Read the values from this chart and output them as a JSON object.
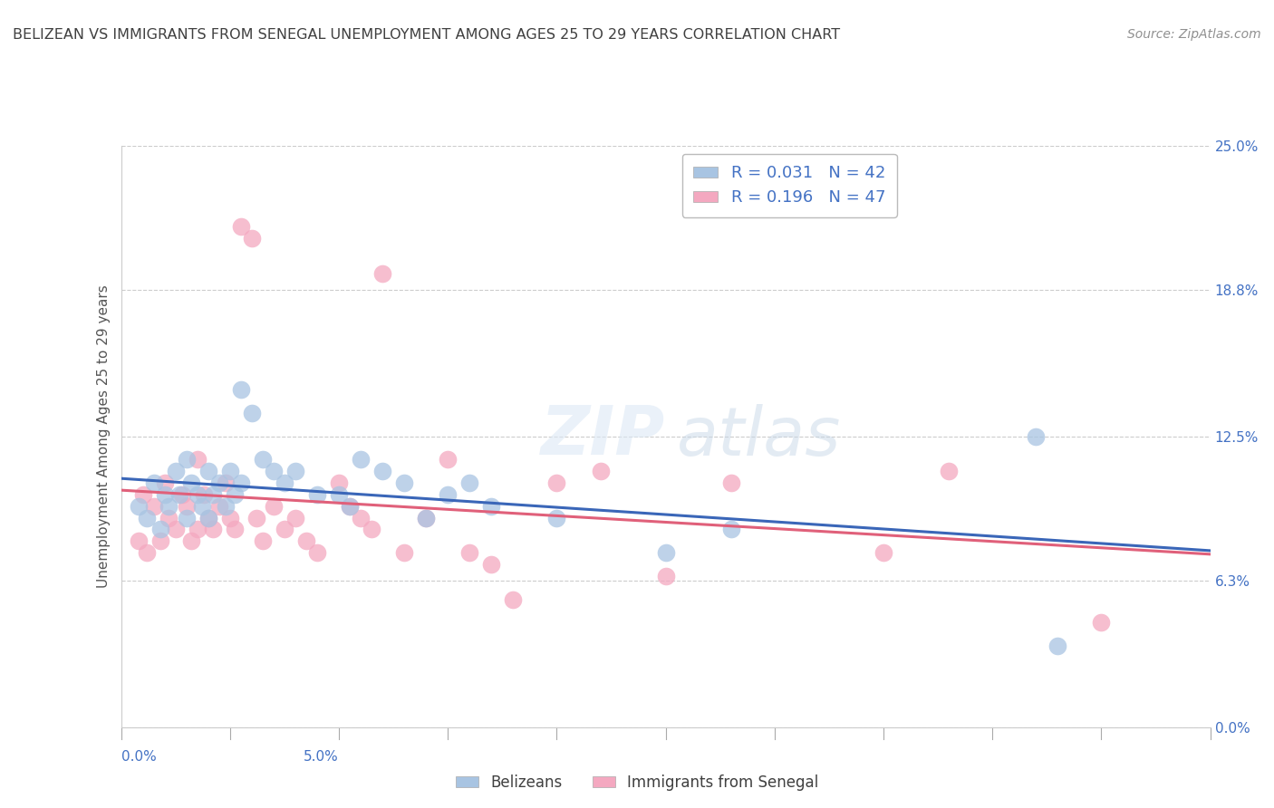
{
  "title": "BELIZEAN VS IMMIGRANTS FROM SENEGAL UNEMPLOYMENT AMONG AGES 25 TO 29 YEARS CORRELATION CHART",
  "source": "Source: ZipAtlas.com",
  "ylabel": "Unemployment Among Ages 25 to 29 years",
  "ytick_labels": [
    "0.0%",
    "6.3%",
    "12.5%",
    "18.8%",
    "25.0%"
  ],
  "ytick_values": [
    0.0,
    6.3,
    12.5,
    18.8,
    25.0
  ],
  "xlim": [
    0.0,
    5.0
  ],
  "ylim": [
    0.0,
    25.0
  ],
  "belizean_R": 0.031,
  "belizean_N": 42,
  "senegal_R": 0.196,
  "senegal_N": 47,
  "belizean_color": "#a8c4e2",
  "senegal_color": "#f4a8c0",
  "belizean_line_color": "#3a66b8",
  "senegal_line_color": "#e0607a",
  "title_color": "#404040",
  "source_color": "#909090",
  "watermark_color": "#d0dff0",
  "background_color": "#ffffff",
  "belizean_x": [
    0.08,
    0.12,
    0.15,
    0.18,
    0.2,
    0.22,
    0.25,
    0.27,
    0.3,
    0.3,
    0.32,
    0.35,
    0.37,
    0.4,
    0.4,
    0.42,
    0.45,
    0.48,
    0.5,
    0.52,
    0.55,
    0.55,
    0.6,
    0.65,
    0.7,
    0.75,
    0.8,
    0.9,
    1.0,
    1.05,
    1.1,
    1.2,
    1.3,
    1.4,
    1.5,
    1.6,
    1.7,
    2.0,
    2.5,
    2.8,
    4.2,
    4.3
  ],
  "belizean_y": [
    9.5,
    9.0,
    10.5,
    8.5,
    10.0,
    9.5,
    11.0,
    10.0,
    11.5,
    9.0,
    10.5,
    10.0,
    9.5,
    11.0,
    9.0,
    10.0,
    10.5,
    9.5,
    11.0,
    10.0,
    14.5,
    10.5,
    13.5,
    11.5,
    11.0,
    10.5,
    11.0,
    10.0,
    10.0,
    9.5,
    11.5,
    11.0,
    10.5,
    9.0,
    10.0,
    10.5,
    9.5,
    9.0,
    7.5,
    8.5,
    12.5,
    3.5
  ],
  "senegal_x": [
    0.08,
    0.1,
    0.12,
    0.15,
    0.18,
    0.2,
    0.22,
    0.25,
    0.28,
    0.3,
    0.32,
    0.35,
    0.35,
    0.38,
    0.4,
    0.42,
    0.45,
    0.48,
    0.5,
    0.52,
    0.55,
    0.6,
    0.62,
    0.65,
    0.7,
    0.75,
    0.8,
    0.85,
    0.9,
    1.0,
    1.05,
    1.1,
    1.15,
    1.2,
    1.3,
    1.4,
    1.5,
    1.6,
    1.7,
    1.8,
    2.0,
    2.2,
    2.5,
    2.8,
    3.5,
    3.8,
    4.5
  ],
  "senegal_y": [
    8.0,
    10.0,
    7.5,
    9.5,
    8.0,
    10.5,
    9.0,
    8.5,
    10.0,
    9.5,
    8.0,
    11.5,
    8.5,
    10.0,
    9.0,
    8.5,
    9.5,
    10.5,
    9.0,
    8.5,
    21.5,
    21.0,
    9.0,
    8.0,
    9.5,
    8.5,
    9.0,
    8.0,
    7.5,
    10.5,
    9.5,
    9.0,
    8.5,
    19.5,
    7.5,
    9.0,
    11.5,
    7.5,
    7.0,
    5.5,
    10.5,
    11.0,
    6.5,
    10.5,
    7.5,
    11.0,
    4.5
  ]
}
